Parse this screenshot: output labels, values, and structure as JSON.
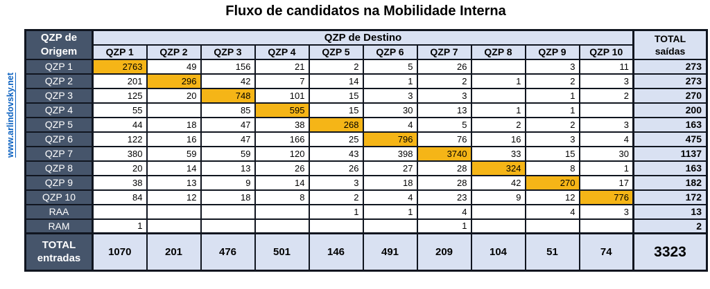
{
  "title": "Fluxo de candidatos na Mobilidade Interna",
  "watermark": "www.arlindovsky.net",
  "colors": {
    "dark": "#46556B",
    "light": "#D9E1F2",
    "highlight": "#F5B517",
    "border": "#10151F",
    "link": "#0B61C0"
  },
  "header": {
    "corner_line1": "QZP de",
    "corner_line2": "Origem",
    "destino": "QZP de Destino",
    "total_line1": "TOTAL",
    "total_line2": "saídas"
  },
  "footer": {
    "label_line1": "TOTAL",
    "label_line2": "entradas"
  },
  "chart_data": {
    "type": "table",
    "title": "Fluxo de candidatos na Mobilidade Interna",
    "column_group_header": "QZP de Destino",
    "row_group_header": "QZP de Origem",
    "total_column_header": "TOTAL saídas",
    "total_row_header": "TOTAL entradas",
    "column_headers": [
      "QZP 1",
      "QZP 2",
      "QZP 3",
      "QZP 4",
      "QZP 5",
      "QZP 6",
      "QZP 7",
      "QZP 8",
      "QZP 9",
      "QZP 10"
    ],
    "rows": [
      {
        "label": "QZP 1",
        "values": [
          2763,
          49,
          156,
          21,
          2,
          5,
          26,
          null,
          3,
          11
        ],
        "total": 273,
        "highlight_col": 0
      },
      {
        "label": "QZP 2",
        "values": [
          201,
          296,
          42,
          7,
          14,
          1,
          2,
          1,
          2,
          3
        ],
        "total": 273,
        "highlight_col": 1
      },
      {
        "label": "QZP 3",
        "values": [
          125,
          20,
          748,
          101,
          15,
          3,
          3,
          null,
          1,
          2
        ],
        "total": 270,
        "highlight_col": 2
      },
      {
        "label": "QZP 4",
        "values": [
          55,
          null,
          85,
          595,
          15,
          30,
          13,
          1,
          1,
          null
        ],
        "total": 200,
        "highlight_col": 3
      },
      {
        "label": "QZP 5",
        "values": [
          44,
          18,
          47,
          38,
          268,
          4,
          5,
          2,
          2,
          3
        ],
        "total": 163,
        "highlight_col": 4
      },
      {
        "label": "QZP 6",
        "values": [
          122,
          16,
          47,
          166,
          25,
          796,
          76,
          16,
          3,
          4
        ],
        "total": 475,
        "highlight_col": 5
      },
      {
        "label": "QZP 7",
        "values": [
          380,
          59,
          59,
          120,
          43,
          398,
          3740,
          33,
          15,
          30
        ],
        "total": 1137,
        "highlight_col": 6
      },
      {
        "label": "QZP 8",
        "values": [
          20,
          14,
          13,
          26,
          26,
          27,
          28,
          324,
          8,
          1
        ],
        "total": 163,
        "highlight_col": 7
      },
      {
        "label": "QZP 9",
        "values": [
          38,
          13,
          9,
          14,
          3,
          18,
          28,
          42,
          270,
          17
        ],
        "total": 182,
        "highlight_col": 8
      },
      {
        "label": "QZP 10",
        "values": [
          84,
          12,
          18,
          8,
          2,
          4,
          23,
          9,
          12,
          776
        ],
        "total": 172,
        "highlight_col": 9
      },
      {
        "label": "RAA",
        "values": [
          null,
          null,
          null,
          null,
          1,
          1,
          4,
          null,
          4,
          3
        ],
        "total": 13,
        "highlight_col": null
      },
      {
        "label": "RAM",
        "values": [
          1,
          null,
          null,
          null,
          null,
          null,
          1,
          null,
          null,
          null
        ],
        "total": 2,
        "highlight_col": null
      }
    ],
    "totals_row": {
      "values": [
        1070,
        201,
        476,
        501,
        146,
        491,
        209,
        104,
        51,
        74
      ],
      "grand_total": 3323
    }
  }
}
